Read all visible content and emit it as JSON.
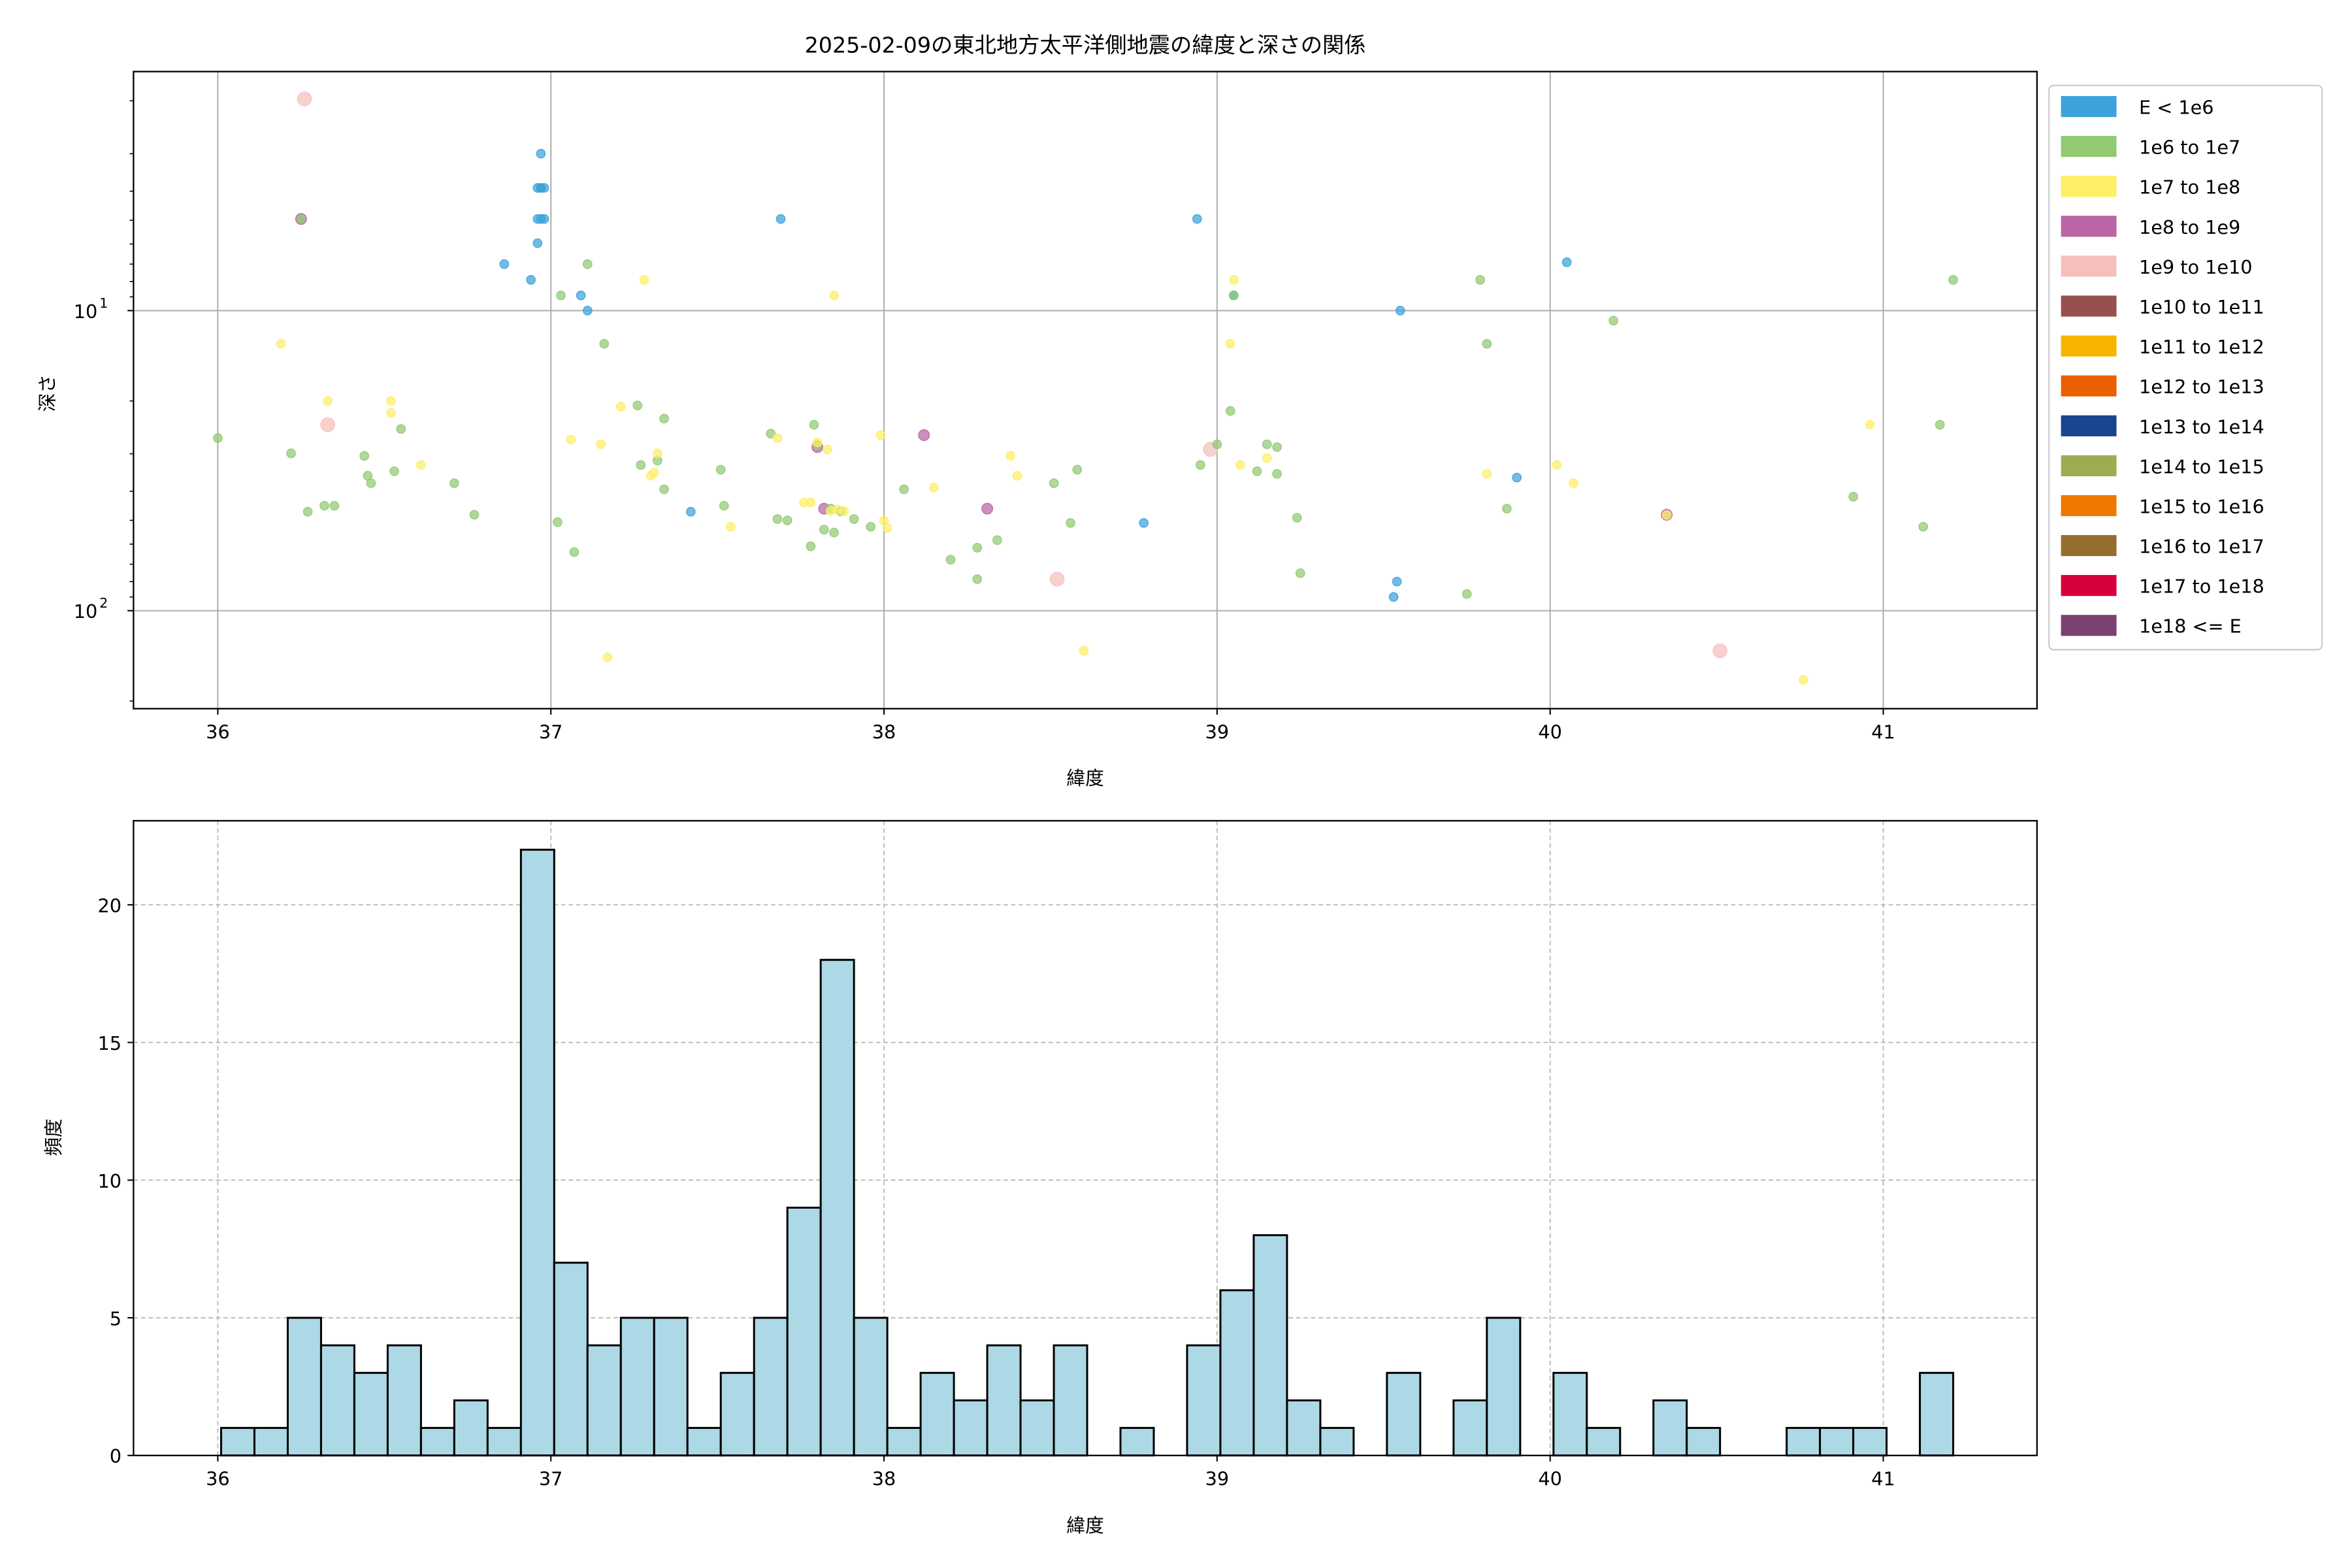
{
  "title": "2025-02-09の東北地方太平洋側地震の緯度と深さの関係",
  "chart_data": [
    {
      "type": "scatter",
      "title": "2025-02-09の東北地方太平洋側地震の緯度と深さの関係",
      "xlabel": "緯度",
      "ylabel": "深さ",
      "xlim": [
        35.744,
        41.46
      ],
      "ylim": [
        212,
        1.6
      ],
      "yscale": "log",
      "y_inverted": true,
      "grid": true,
      "x_ticks": [
        "36",
        "37",
        "38",
        "39",
        "40",
        "41"
      ],
      "y_ticks": [
        {
          "base": "10",
          "exp": "1",
          "value": 10
        },
        {
          "base": "10",
          "exp": "2",
          "value": 100
        }
      ],
      "legend_position": "outside-right",
      "legend": [
        {
          "label": "E < 1e6",
          "color": "#3ca2db"
        },
        {
          "label": "1e6 to 1e7",
          "color": "#92c973"
        },
        {
          "label": "1e7 to 1e8",
          "color": "#fdee66"
        },
        {
          "label": "1e8 to 1e9",
          "color": "#ba65a5"
        },
        {
          "label": "1e9 to 1e10",
          "color": "#f5bfbd"
        },
        {
          "label": "1e10 to 1e11",
          "color": "#96514d"
        },
        {
          "label": "1e11 to 1e12",
          "color": "#f8b500"
        },
        {
          "label": "1e12 to 1e13",
          "color": "#ea6000"
        },
        {
          "label": "1e13 to 1e14",
          "color": "#19448e"
        },
        {
          "label": "1e14 to 1e15",
          "color": "#9cad51"
        },
        {
          "label": "1e15 to 1e16",
          "color": "#ee7800"
        },
        {
          "label": "1e16 to 1e17",
          "color": "#946e2e"
        },
        {
          "label": "1e17 to 1e18",
          "color": "#d7003a"
        },
        {
          "label": "1e18 <= E",
          "color": "#7a4171"
        }
      ],
      "points_format": [
        "latitude",
        "depth",
        "energy_class_index"
      ],
      "points": [
        [
          36.26,
          1.97,
          4
        ],
        [
          36.33,
          24,
          4
        ],
        [
          38.98,
          29,
          4
        ],
        [
          38.52,
          78.5,
          4
        ],
        [
          40.51,
          136,
          4
        ],
        [
          36.25,
          4.95,
          3
        ],
        [
          38.12,
          26,
          3
        ],
        [
          38.31,
          45.7,
          3
        ],
        [
          37.8,
          28.5,
          3
        ],
        [
          37.82,
          45.7,
          3
        ],
        [
          40.35,
          47.9,
          3
        ],
        [
          36.97,
          3.0,
          0
        ],
        [
          36.96,
          3.9,
          0
        ],
        [
          36.97,
          3.9,
          0
        ],
        [
          36.98,
          3.9,
          0
        ],
        [
          36.97,
          3.9,
          0
        ],
        [
          36.96,
          4.95,
          0
        ],
        [
          36.97,
          4.95,
          0
        ],
        [
          36.98,
          4.95,
          0
        ],
        [
          36.96,
          5.96,
          0
        ],
        [
          36.86,
          7.0,
          0
        ],
        [
          36.94,
          7.9,
          0
        ],
        [
          37.09,
          8.9,
          0
        ],
        [
          37.11,
          10,
          0
        ],
        [
          37.69,
          4.95,
          0
        ],
        [
          37.42,
          46.8,
          0
        ],
        [
          38.94,
          4.95,
          0
        ],
        [
          39.05,
          8.9,
          0
        ],
        [
          38.78,
          51,
          0
        ],
        [
          39.55,
          10,
          0
        ],
        [
          40.05,
          6.9,
          0
        ],
        [
          39.9,
          36,
          0
        ],
        [
          39.54,
          80,
          0
        ],
        [
          39.53,
          90,
          0
        ],
        [
          36.0,
          26.6,
          1
        ],
        [
          36.22,
          29.9,
          1
        ],
        [
          36.25,
          4.95,
          1
        ],
        [
          36.27,
          46.8,
          1
        ],
        [
          36.32,
          44.7,
          1
        ],
        [
          36.35,
          44.7,
          1
        ],
        [
          36.44,
          30.5,
          1
        ],
        [
          36.45,
          35.5,
          1
        ],
        [
          36.46,
          37.6,
          1
        ],
        [
          36.53,
          34.3,
          1
        ],
        [
          36.55,
          24.8,
          1
        ],
        [
          36.71,
          37.6,
          1
        ],
        [
          36.77,
          47.9,
          1
        ],
        [
          37.03,
          8.9,
          1
        ],
        [
          37.11,
          7.0,
          1
        ],
        [
          37.16,
          12.9,
          1
        ],
        [
          37.02,
          50.7,
          1
        ],
        [
          37.07,
          63.8,
          1
        ],
        [
          37.26,
          20.7,
          1
        ],
        [
          37.27,
          32.7,
          1
        ],
        [
          37.32,
          31.6,
          1
        ],
        [
          37.34,
          22.9,
          1
        ],
        [
          37.34,
          39.4,
          1
        ],
        [
          37.51,
          33.9,
          1
        ],
        [
          37.52,
          44.7,
          1
        ],
        [
          37.66,
          25.7,
          1
        ],
        [
          37.68,
          49.5,
          1
        ],
        [
          37.71,
          50,
          1
        ],
        [
          37.79,
          24,
          1
        ],
        [
          37.78,
          61,
          1
        ],
        [
          37.82,
          53.7,
          1
        ],
        [
          37.85,
          54.9,
          1
        ],
        [
          37.84,
          45.7,
          1
        ],
        [
          37.87,
          46.6,
          1
        ],
        [
          37.91,
          49.5,
          1
        ],
        [
          37.96,
          52.5,
          1
        ],
        [
          38.06,
          39.4,
          1
        ],
        [
          38.2,
          67.6,
          1
        ],
        [
          38.28,
          61.7,
          1
        ],
        [
          38.28,
          78.5,
          1
        ],
        [
          38.34,
          58.2,
          1
        ],
        [
          38.51,
          37.6,
          1
        ],
        [
          38.56,
          51,
          1
        ],
        [
          38.58,
          33.9,
          1
        ],
        [
          38.95,
          32.7,
          1
        ],
        [
          39.0,
          27.9,
          1
        ],
        [
          39.04,
          21.6,
          1
        ],
        [
          39.12,
          34.3,
          1
        ],
        [
          39.15,
          27.9,
          1
        ],
        [
          39.18,
          28.5,
          1
        ],
        [
          39.18,
          35,
          1
        ],
        [
          39.24,
          49,
          1
        ],
        [
          39.25,
          75,
          1
        ],
        [
          39.75,
          88,
          1
        ],
        [
          39.79,
          7.9,
          1
        ],
        [
          39.81,
          12.9,
          1
        ],
        [
          39.87,
          45.7,
          1
        ],
        [
          40.19,
          10.8,
          1
        ],
        [
          40.91,
          41.7,
          1
        ],
        [
          41.12,
          52.5,
          1
        ],
        [
          41.17,
          24,
          1
        ],
        [
          41.21,
          7.9,
          1
        ],
        [
          39.05,
          8.9,
          1
        ],
        [
          37.8,
          28,
          1
        ],
        [
          36.19,
          12.9,
          2
        ],
        [
          36.33,
          20,
          2
        ],
        [
          36.52,
          20,
          2
        ],
        [
          36.52,
          21.9,
          2
        ],
        [
          36.61,
          32.7,
          2
        ],
        [
          37.06,
          26.9,
          2
        ],
        [
          37.15,
          27.9,
          2
        ],
        [
          37.21,
          20.9,
          2
        ],
        [
          37.28,
          7.9,
          2
        ],
        [
          37.3,
          35.5,
          2
        ],
        [
          37.31,
          34.7,
          2
        ],
        [
          37.32,
          29.9,
          2
        ],
        [
          37.17,
          143,
          2
        ],
        [
          37.54,
          52.5,
          2
        ],
        [
          37.68,
          26.6,
          2
        ],
        [
          37.76,
          43.6,
          2
        ],
        [
          37.78,
          43.6,
          2
        ],
        [
          37.8,
          27.5,
          2
        ],
        [
          37.83,
          29,
          2
        ],
        [
          37.85,
          8.9,
          2
        ],
        [
          37.88,
          46.6,
          2
        ],
        [
          37.99,
          26,
          2
        ],
        [
          38.0,
          50.1,
          2
        ],
        [
          38.01,
          53,
          2
        ],
        [
          38.15,
          38.9,
          2
        ],
        [
          38.38,
          30.5,
          2
        ],
        [
          38.4,
          35.5,
          2
        ],
        [
          38.6,
          136,
          2
        ],
        [
          39.05,
          7.9,
          2
        ],
        [
          39.04,
          12.9,
          2
        ],
        [
          39.07,
          32.7,
          2
        ],
        [
          39.15,
          31,
          2
        ],
        [
          39.81,
          35,
          2
        ],
        [
          40.02,
          32.7,
          2
        ],
        [
          40.07,
          37.6,
          2
        ],
        [
          40.35,
          48,
          2
        ],
        [
          40.76,
          170,
          2
        ],
        [
          40.96,
          24,
          2
        ],
        [
          37.86,
          46,
          2
        ],
        [
          37.84,
          46.5,
          2
        ]
      ]
    },
    {
      "type": "bar",
      "subtype": "histogram",
      "xlabel": "緯度",
      "ylabel": "頻度",
      "xlim": [
        35.744,
        41.46
      ],
      "ylim": [
        0,
        23.05
      ],
      "grid": true,
      "x_ticks": [
        "36",
        "37",
        "38",
        "39",
        "40",
        "41"
      ],
      "y_ticks": [
        "0",
        "5",
        "10",
        "15",
        "20"
      ],
      "bin_start": 36.01,
      "bin_width": 0.1,
      "bar_color": "#add8e6",
      "counts": [
        1,
        1,
        5,
        4,
        3,
        4,
        1,
        2,
        1,
        22,
        7,
        4,
        5,
        5,
        1,
        3,
        5,
        9,
        18,
        5,
        1,
        3,
        2,
        4,
        2,
        4,
        0,
        1,
        0,
        4,
        6,
        8,
        2,
        1,
        0,
        3,
        0,
        2,
        5,
        0,
        3,
        1,
        0,
        2,
        1,
        0,
        0,
        1,
        1,
        1,
        0,
        3
      ]
    }
  ]
}
